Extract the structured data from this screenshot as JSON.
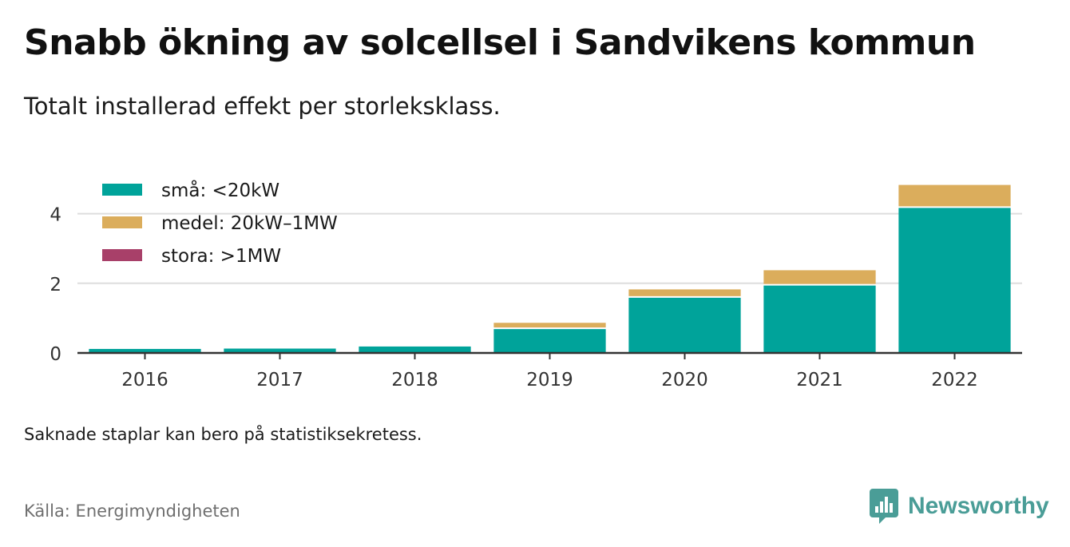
{
  "title": "Snabb ökning av solcellsel i Sandvikens kommun",
  "subtitle": "Totalt installerad effekt per storleksklass.",
  "note": "Saknade staplar kan bero på statistiksekretess.",
  "source": "Källa: Energimyndigheten",
  "brand": "Newsworthy",
  "colors": {
    "small": "#00a39a",
    "medium": "#dbad5c",
    "large": "#a84069",
    "grid": "#dddddd",
    "axis": "#333333",
    "brand": "#4a9d97"
  },
  "chart_data": {
    "type": "bar",
    "stacked": true,
    "categories": [
      "2016",
      "2017",
      "2018",
      "2019",
      "2020",
      "2021",
      "2022"
    ],
    "series": [
      {
        "name": "små: <20kW",
        "color": "#00a39a",
        "values": [
          0.15,
          0.16,
          0.22,
          0.72,
          1.62,
          1.97,
          4.2
        ]
      },
      {
        "name": "medel: 20kW–1MW",
        "color": "#dbad5c",
        "values": [
          0,
          0,
          0,
          0.18,
          0.24,
          0.44,
          0.66
        ]
      },
      {
        "name": "stora: >1MW",
        "color": "#a84069",
        "values": [
          0,
          0,
          0,
          0,
          0,
          0,
          0
        ]
      }
    ],
    "yticks": [
      0,
      2,
      4
    ],
    "ylim": [
      0,
      5
    ],
    "grid": true,
    "legend_position": "top-left",
    "xlabel": "",
    "ylabel": ""
  }
}
